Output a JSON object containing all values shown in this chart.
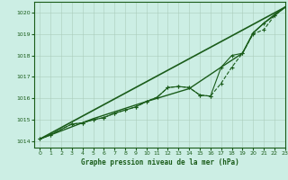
{
  "bg_color": "#cceee4",
  "grid_color": "#aaccbb",
  "line_color": "#1a5c1a",
  "xlabel": "Graphe pression niveau de la mer (hPa)",
  "ylim": [
    1013.7,
    1020.5
  ],
  "xlim": [
    -0.5,
    23
  ],
  "yticks": [
    1014,
    1015,
    1016,
    1017,
    1018,
    1019,
    1020
  ],
  "xticks": [
    0,
    1,
    2,
    3,
    4,
    5,
    6,
    7,
    8,
    9,
    10,
    11,
    12,
    13,
    14,
    15,
    16,
    17,
    18,
    19,
    20,
    21,
    22,
    23
  ],
  "series": [
    {
      "x": [
        0,
        1,
        3,
        4,
        5,
        6,
        7,
        8,
        9,
        10,
        11,
        12,
        13,
        14,
        15,
        16,
        17,
        18,
        19,
        20,
        21,
        22,
        23
      ],
      "y": [
        1014.1,
        1014.3,
        1014.8,
        1014.85,
        1015.0,
        1015.1,
        1015.3,
        1015.45,
        1015.6,
        1015.85,
        1016.05,
        1016.5,
        1016.55,
        1016.5,
        1016.15,
        1016.1,
        1016.7,
        1017.45,
        1018.1,
        1019.0,
        1019.2,
        1019.85,
        1020.25
      ],
      "marker": "+",
      "linestyle": "--",
      "linewidth": 0.8,
      "markersize": 3
    },
    {
      "x": [
        0,
        23
      ],
      "y": [
        1014.1,
        1020.25
      ],
      "marker": null,
      "linestyle": "-",
      "linewidth": 1.2,
      "markersize": 0
    },
    {
      "x": [
        0,
        5,
        10,
        14,
        17,
        19,
        20,
        21,
        22,
        23
      ],
      "y": [
        1014.1,
        1015.05,
        1015.85,
        1016.45,
        1017.45,
        1018.1,
        1019.05,
        1019.5,
        1019.9,
        1020.25
      ],
      "marker": null,
      "linestyle": "-",
      "linewidth": 1.0,
      "markersize": 0
    },
    {
      "x": [
        0,
        1,
        3,
        4,
        5,
        6,
        7,
        8,
        9,
        10,
        11,
        12,
        13,
        14,
        15,
        16,
        17,
        18,
        19,
        20,
        21,
        22,
        23
      ],
      "y": [
        1014.1,
        1014.3,
        1014.8,
        1014.85,
        1015.0,
        1015.1,
        1015.3,
        1015.45,
        1015.6,
        1015.85,
        1016.05,
        1016.5,
        1016.55,
        1016.5,
        1016.15,
        1016.1,
        1017.45,
        1018.0,
        1018.1,
        1019.05,
        1019.5,
        1019.85,
        1020.25
      ],
      "marker": "+",
      "linestyle": "-",
      "linewidth": 0.8,
      "markersize": 3
    }
  ]
}
